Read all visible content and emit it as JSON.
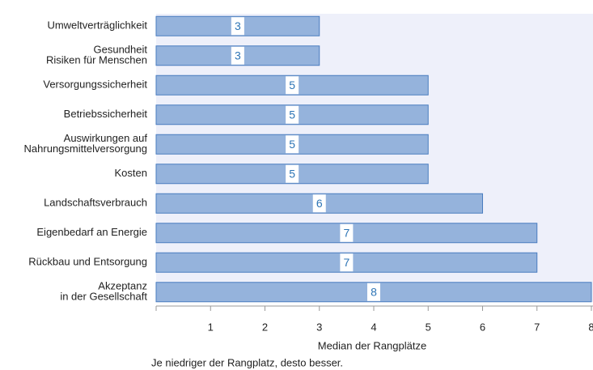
{
  "chart_data": {
    "type": "barh",
    "categories": [
      [
        "Umweltverträglichkeit"
      ],
      [
        "Gesundheit",
        "Risiken für Menschen"
      ],
      [
        "Versorgungssicherheit"
      ],
      [
        "Betriebssicherheit"
      ],
      [
        "Auswirkungen auf",
        "Nahrungsmittelversorgung"
      ],
      [
        "Kosten"
      ],
      [
        "Landschaftsverbrauch"
      ],
      [
        "Eigenbedarf an Energie"
      ],
      [
        "Rückbau und Entsorgung"
      ],
      [
        "Akzeptanz",
        "in der Gesellschaft"
      ]
    ],
    "values": [
      3,
      3,
      5,
      5,
      5,
      5,
      6,
      7,
      7,
      8
    ],
    "color": "#95b3dc",
    "edge_color": "#4a7dbf",
    "xlim": [
      0,
      8
    ],
    "xticks": [
      1,
      2,
      3,
      4,
      5,
      6,
      7,
      8
    ],
    "xlabel": "Median der Rangplätze",
    "footnote": "Je niedriger der Rangplatz, desto besser."
  }
}
